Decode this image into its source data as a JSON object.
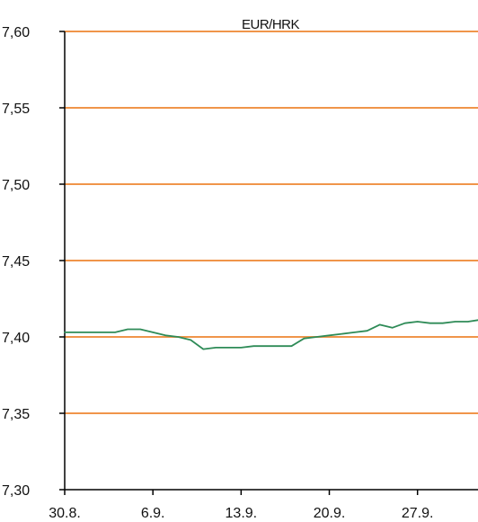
{
  "chart_data": {
    "type": "line",
    "title": "EUR/HRK",
    "xlabel": "",
    "ylabel": "",
    "ylim": [
      7.3,
      7.6
    ],
    "y_ticks": [
      7.3,
      7.35,
      7.4,
      7.45,
      7.5,
      7.55,
      7.6
    ],
    "y_tick_labels": [
      "7,30",
      "7,35",
      "7,40",
      "7,45",
      "7,50",
      "7,55",
      "7,60"
    ],
    "x_ticks": [
      0,
      7,
      14,
      21,
      28
    ],
    "x_tick_labels": [
      "30.8.",
      "6.9.",
      "13.9.",
      "20.9.",
      "27.9."
    ],
    "xlim": [
      0,
      32.8
    ],
    "grid": true,
    "colors": {
      "grid": "#F0954A",
      "line": "#2E8B57",
      "axis": "#000000"
    },
    "series": [
      {
        "name": "",
        "x": [
          0,
          1,
          2,
          3,
          4,
          5,
          6,
          7,
          8,
          9,
          10,
          11,
          12,
          13,
          14,
          15,
          16,
          17,
          18,
          19,
          20,
          21,
          22,
          23,
          24,
          25,
          26,
          27,
          28,
          29,
          30,
          31,
          32,
          32.8
        ],
        "values": [
          7.403,
          7.403,
          7.403,
          7.403,
          7.403,
          7.405,
          7.405,
          7.403,
          7.401,
          7.4,
          7.398,
          7.392,
          7.393,
          7.393,
          7.393,
          7.394,
          7.394,
          7.394,
          7.394,
          7.399,
          7.4,
          7.401,
          7.402,
          7.403,
          7.404,
          7.408,
          7.406,
          7.409,
          7.41,
          7.409,
          7.409,
          7.41,
          7.41,
          7.411
        ]
      }
    ]
  }
}
